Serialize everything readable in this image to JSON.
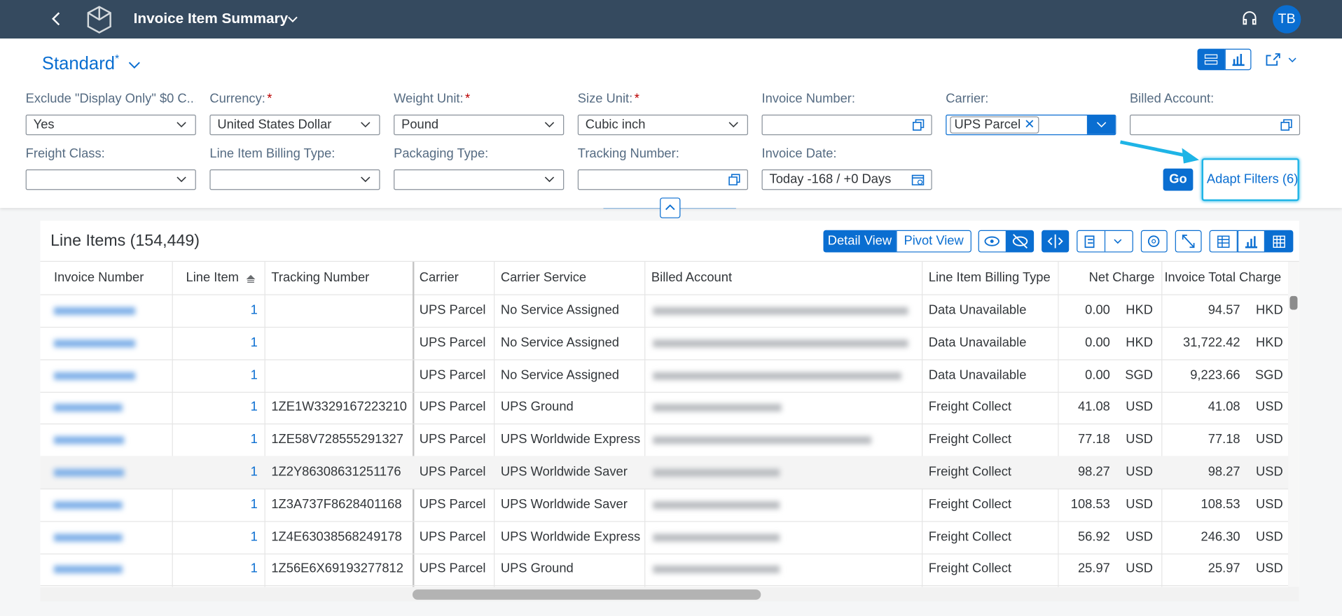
{
  "header": {
    "title": "Invoice Item Summary",
    "avatar": "TB"
  },
  "variant": {
    "name": "Standard",
    "modified": "*"
  },
  "required_mark": "*",
  "filters": [
    {
      "label": "Exclude \"Display Only\" $0 C...",
      "required": true,
      "value": "Yes",
      "control": "select"
    },
    {
      "label": "Currency:",
      "required": true,
      "value": "United States Dollar",
      "control": "select"
    },
    {
      "label": "Weight Unit:",
      "required": true,
      "value": "Pound",
      "control": "select"
    },
    {
      "label": "Size Unit:",
      "required": true,
      "value": "Cubic inch",
      "control": "select"
    },
    {
      "label": "Invoice Number:",
      "required": false,
      "value": null,
      "control": "valuehelp"
    },
    {
      "label": "Carrier:",
      "required": false,
      "value": "UPS Parcel",
      "control": "token"
    },
    {
      "label": "Billed Account:",
      "required": false,
      "value": null,
      "control": "valuehelp"
    },
    {
      "label": "Freight Class:",
      "required": false,
      "value": null,
      "control": "select"
    },
    {
      "label": "Line Item Billing Type:",
      "required": false,
      "value": null,
      "control": "select"
    },
    {
      "label": "Packaging Type:",
      "required": false,
      "value": null,
      "control": "select"
    },
    {
      "label": "Tracking Number:",
      "required": false,
      "value": null,
      "control": "valuehelp"
    },
    {
      "label": "Invoice Date:",
      "required": false,
      "value": "Today -168 / +0 Days",
      "control": "date"
    }
  ],
  "buttons": {
    "go": "Go",
    "adapt_filters": "Adapt Filters (6)"
  },
  "table": {
    "title": "Line Items (154,449)",
    "views": [
      "Detail View",
      "Pivot View"
    ],
    "columns": [
      "Invoice Number",
      "Line Item",
      "Tracking Number",
      "Carrier",
      "Carrier Service",
      "Billed Account",
      "Line Item Billing Type",
      "Net Charge",
      "Invoice Total Charge"
    ],
    "rows": [
      {
        "line_item": 1,
        "tracking": null,
        "carrier": "UPS Parcel",
        "service": "No Service Assigned",
        "billing_type": "Data Unavailable",
        "net_charge": "0.00",
        "net_currency": "HKD",
        "total_charge": "94.57",
        "total_currency": "HKD"
      },
      {
        "line_item": 1,
        "tracking": null,
        "carrier": "UPS Parcel",
        "service": "No Service Assigned",
        "billing_type": "Data Unavailable",
        "net_charge": "0.00",
        "net_currency": "HKD",
        "total_charge": "31,722.42",
        "total_currency": "HKD"
      },
      {
        "line_item": 1,
        "tracking": null,
        "carrier": "UPS Parcel",
        "service": "No Service Assigned",
        "billing_type": "Data Unavailable",
        "net_charge": "0.00",
        "net_currency": "SGD",
        "total_charge": "9,223.66",
        "total_currency": "SGD"
      },
      {
        "line_item": 1,
        "tracking": "1ZE1W3329167223210",
        "carrier": "UPS Parcel",
        "service": "UPS Ground",
        "billing_type": "Freight Collect",
        "net_charge": "41.08",
        "net_currency": "USD",
        "total_charge": "41.08",
        "total_currency": "USD"
      },
      {
        "line_item": 1,
        "tracking": "1ZE58V728555291327",
        "carrier": "UPS Parcel",
        "service": "UPS Worldwide Express",
        "billing_type": "Freight Collect",
        "net_charge": "77.18",
        "net_currency": "USD",
        "total_charge": "77.18",
        "total_currency": "USD"
      },
      {
        "line_item": 1,
        "tracking": "1Z2Y86308631251176",
        "carrier": "UPS Parcel",
        "service": "UPS Worldwide Saver",
        "billing_type": "Freight Collect",
        "net_charge": "98.27",
        "net_currency": "USD",
        "total_charge": "98.27",
        "total_currency": "USD"
      },
      {
        "line_item": 1,
        "tracking": "1Z3A737F8628401168",
        "carrier": "UPS Parcel",
        "service": "UPS Worldwide Saver",
        "billing_type": "Freight Collect",
        "net_charge": "108.53",
        "net_currency": "USD",
        "total_charge": "108.53",
        "total_currency": "USD"
      },
      {
        "line_item": 1,
        "tracking": "1Z4E63038568249178",
        "carrier": "UPS Parcel",
        "service": "UPS Worldwide Express",
        "billing_type": "Freight Collect",
        "net_charge": "56.92",
        "net_currency": "USD",
        "total_charge": "246.30",
        "total_currency": "USD"
      },
      {
        "line_item": 1,
        "tracking": "1Z56E6X69193277812",
        "carrier": "UPS Parcel",
        "service": "UPS Ground",
        "billing_type": "Freight Collect",
        "net_charge": "25.97",
        "net_currency": "USD",
        "total_charge": "25.97",
        "total_currency": "USD"
      }
    ]
  }
}
